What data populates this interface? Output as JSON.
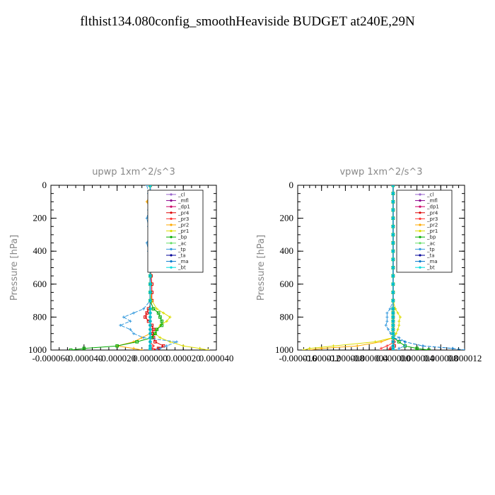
{
  "title": "flthist134.080config_smoothHeaviside  BUDGET at240E,29N",
  "legend_entries": [
    "_cl",
    "_mfl",
    "_dp1",
    "_pr4",
    "_pr3",
    "_pr2",
    "_pr1",
    "_bp",
    "_ac",
    "_tp",
    "_ta",
    "_ma",
    "_bt"
  ],
  "colors": {
    "_cl": "#9966cc",
    "_mfl": "#8b008b",
    "_dp1": "#cc0066",
    "_pr4": "#dd0000",
    "_pr3": "#ff3333",
    "_pr2": "#ffaa00",
    "_pr1": "#dddd00",
    "_bp": "#00aa00",
    "_ac": "#66dd66",
    "_tp": "#3399dd",
    "_ta": "#000099",
    "_ma": "#0077cc",
    "_bt": "#00dddd"
  },
  "chart_data": [
    {
      "type": "line",
      "title": "upwp   1xm^2/s^3",
      "ylabel": "Pressure [hPa]",
      "xlabel": "",
      "xlim": [
        -6e-05,
        4e-05
      ],
      "ylim": [
        1000,
        0
      ],
      "xticks": [
        "-0.000060",
        "-0.000040",
        "-0.000020",
        "0.000000",
        "0.000020",
        "0.000040"
      ],
      "yticks": [
        "0",
        "200",
        "400",
        "600",
        "800",
        "1000"
      ],
      "y": [
        0,
        50,
        100,
        150,
        200,
        250,
        300,
        350,
        400,
        450,
        500,
        550,
        600,
        650,
        700,
        750,
        775,
        800,
        825,
        850,
        875,
        900,
        925,
        950,
        975,
        990,
        1000
      ],
      "series": [
        {
          "name": "_cl",
          "values": [
            0,
            0,
            0,
            0,
            0,
            0,
            0,
            0,
            0,
            0,
            0,
            0,
            0,
            0,
            0,
            0,
            0,
            0,
            0,
            0,
            0,
            0,
            0,
            0,
            0,
            0,
            0
          ]
        },
        {
          "name": "_mfl",
          "values": [
            0,
            0,
            0,
            0,
            0,
            0,
            0,
            0,
            0,
            0,
            0,
            0,
            0,
            0,
            0,
            0,
            0,
            0,
            0,
            0,
            0,
            0,
            0,
            0,
            0,
            0,
            0
          ]
        },
        {
          "name": "_dp1",
          "values": [
            0,
            0,
            0,
            0,
            0,
            0,
            0,
            0,
            0,
            0,
            0,
            0,
            0,
            0,
            0,
            0,
            0,
            0,
            0,
            0,
            0,
            0,
            0,
            0,
            0,
            0,
            0
          ]
        },
        {
          "name": "_pr4",
          "values": [
            0,
            0,
            0,
            0,
            0,
            0,
            0,
            0,
            0,
            0,
            0,
            5e-07,
            1e-06,
            1e-06,
            1e-06,
            -1e-06,
            -2e-06,
            -3e-06,
            -1e-06,
            1e-06,
            2e-06,
            1e-06,
            2e-06,
            3e-06,
            8e-06,
            5e-06,
            2e-06
          ]
        },
        {
          "name": "_pr3",
          "values": [
            0,
            0,
            0,
            0,
            0,
            0,
            0,
            0,
            0,
            0,
            0,
            0,
            0,
            0,
            0,
            0,
            0,
            0,
            0,
            0,
            0,
            0,
            0,
            0,
            2e-06,
            1e-06,
            1e-06
          ]
        },
        {
          "name": "_pr2",
          "values": [
            0,
            0,
            -2e-06,
            0,
            1e-06,
            0,
            0,
            0,
            0,
            0,
            0,
            0,
            0,
            0,
            0,
            0,
            0,
            0,
            0,
            0,
            0,
            0,
            -5e-06,
            -1e-05,
            -2e-05,
            -1e-05,
            -5e-06
          ]
        },
        {
          "name": "_pr1",
          "values": [
            0,
            0,
            0,
            0,
            2e-06,
            2e-06,
            1e-06,
            0,
            0,
            0,
            0,
            0,
            0,
            0,
            1e-06,
            4e-06,
            8e-06,
            1.2e-05,
            1e-05,
            6e-06,
            4e-06,
            3e-06,
            6e-06,
            1.2e-05,
            2e-05,
            3e-05,
            3.5e-05
          ]
        },
        {
          "name": "_bp",
          "values": [
            0,
            0,
            0,
            0,
            0,
            0,
            0,
            0,
            0,
            0,
            0,
            0,
            0,
            0,
            0,
            2e-06,
            5e-06,
            6e-06,
            7e-06,
            7e-06,
            4e-06,
            3e-06,
            1e-06,
            -8e-06,
            -2e-05,
            -4e-05,
            -4.8e-05
          ]
        },
        {
          "name": "_ac",
          "values": [
            0,
            0,
            0,
            0,
            0,
            0,
            0,
            0,
            0,
            0,
            0,
            0,
            0,
            0,
            0,
            0,
            0,
            0,
            0,
            0,
            0,
            0,
            0,
            0,
            0,
            0,
            0
          ]
        },
        {
          "name": "_tp",
          "values": [
            -2e-06,
            -1e-06,
            3e-06,
            -1e-06,
            -2e-06,
            -1e-06,
            0,
            -2e-06,
            -1e-06,
            0,
            0,
            0,
            0,
            0,
            0,
            -4e-06,
            -1e-05,
            -1.6e-05,
            -1.2e-05,
            -1.8e-05,
            -1.2e-05,
            -1e-05,
            -4e-06,
            1.6e-05,
            1e-05,
            6e-06,
            4e-06
          ]
        },
        {
          "name": "_ta",
          "values": [
            0,
            0,
            0,
            0,
            0,
            0,
            0,
            0,
            0,
            0,
            0,
            0,
            0,
            0,
            0,
            0,
            0,
            0,
            0,
            0,
            0,
            0,
            0,
            0,
            0,
            0,
            0
          ]
        },
        {
          "name": "_ma",
          "values": [
            0,
            0,
            0,
            0,
            0,
            0,
            0,
            0,
            0,
            0,
            0,
            0,
            0,
            0,
            0,
            0,
            0,
            0,
            0,
            0,
            0,
            0,
            0,
            0,
            0,
            0,
            0
          ]
        },
        {
          "name": "_bt",
          "values": [
            0,
            0,
            0,
            0,
            0,
            0,
            0,
            0,
            0,
            0,
            0,
            0,
            0,
            0,
            0,
            0,
            0,
            0,
            0,
            0,
            0,
            0,
            0,
            0,
            0,
            0,
            0
          ]
        }
      ]
    },
    {
      "type": "line",
      "title": "vpwp   1xm^2/s^3",
      "ylabel": "Pressure [hPa]",
      "xlabel": "",
      "xlim": [
        -1.6e-05,
        1.2e-05
      ],
      "ylim": [
        1000,
        0
      ],
      "xticks": [
        "-0.000016",
        "-0.000012",
        "-0.000008",
        "-0.000004",
        "0.000000",
        "0.000004",
        "0.000008",
        "0.000012"
      ],
      "yticks": [
        "0",
        "200",
        "400",
        "600",
        "800",
        "1000"
      ],
      "y": [
        0,
        50,
        100,
        150,
        200,
        250,
        300,
        350,
        400,
        450,
        500,
        550,
        600,
        650,
        700,
        750,
        775,
        800,
        825,
        850,
        875,
        900,
        925,
        950,
        975,
        990,
        1000
      ],
      "series": [
        {
          "name": "_cl",
          "values": [
            0,
            0,
            0,
            0,
            0,
            0,
            0,
            0,
            0,
            0,
            0,
            0,
            0,
            0,
            0,
            0,
            0,
            0,
            0,
            0,
            0,
            0,
            0,
            0,
            0,
            0,
            0
          ]
        },
        {
          "name": "_mfl",
          "values": [
            0,
            0,
            0,
            0,
            0,
            0,
            0,
            0,
            0,
            0,
            0,
            0,
            0,
            0,
            0,
            0,
            0,
            0,
            0,
            0,
            0,
            0,
            0,
            0,
            0,
            0,
            0
          ]
        },
        {
          "name": "_dp1",
          "values": [
            0,
            0,
            0,
            0,
            0,
            0,
            0,
            0,
            0,
            0,
            0,
            0,
            0,
            0,
            0,
            0,
            0,
            0,
            0,
            0,
            0,
            0,
            0,
            0,
            0,
            0,
            0
          ]
        },
        {
          "name": "_pr4",
          "values": [
            0,
            0,
            0,
            0,
            0,
            0,
            0,
            0,
            0,
            0,
            0,
            0,
            0,
            0,
            0,
            0,
            0,
            0,
            0,
            0,
            0,
            0,
            0,
            0,
            2e-07,
            -3e-07,
            -5e-07
          ]
        },
        {
          "name": "_pr3",
          "values": [
            0,
            0,
            0,
            0,
            0,
            0,
            0,
            0,
            0,
            0,
            0,
            0,
            0,
            0,
            0,
            0,
            0,
            0,
            0,
            0,
            0,
            0,
            0,
            3e-07,
            -1e-06,
            -2e-06,
            -2e-06
          ]
        },
        {
          "name": "_pr2",
          "values": [
            0,
            0,
            0,
            0,
            0,
            0,
            0,
            0,
            0,
            0,
            0,
            0,
            0,
            0,
            0,
            0,
            0,
            0,
            0,
            0,
            0,
            0,
            0,
            -2e-06,
            -6e-06,
            -1.2e-05,
            -1.4e-05
          ]
        },
        {
          "name": "_pr1",
          "values": [
            0,
            0,
            0,
            0,
            0,
            0,
            0,
            0,
            0,
            0,
            0,
            0,
            0,
            0,
            0,
            4e-07,
            8e-07,
            1.2e-06,
            1e-06,
            1e-06,
            8e-07,
            5e-07,
            0,
            -3e-06,
            -1e-05,
            -1.4e-05,
            -1.5e-05
          ]
        },
        {
          "name": "_bp",
          "values": [
            0,
            0,
            0,
            0,
            0,
            0,
            0,
            0,
            0,
            0,
            0,
            0,
            0,
            0,
            0,
            0,
            0,
            0,
            0,
            0,
            0,
            0,
            0,
            1e-06,
            2e-06,
            4e-06,
            6e-06
          ]
        },
        {
          "name": "_ac",
          "values": [
            0,
            0,
            0,
            0,
            0,
            0,
            0,
            0,
            0,
            0,
            0,
            0,
            0,
            0,
            0,
            0,
            0,
            0,
            0,
            0,
            0,
            0,
            0,
            0,
            0,
            0,
            0
          ]
        },
        {
          "name": "_tp",
          "values": [
            0,
            0,
            0,
            0,
            0,
            0,
            0,
            0,
            0,
            0,
            0,
            0,
            0,
            0,
            0,
            -5e-07,
            -1e-06,
            -1e-06,
            -1e-06,
            -1.2e-06,
            -8e-07,
            -4e-07,
            1e-06,
            2e-06,
            2e-06,
            1e-06,
            1e-06
          ]
        },
        {
          "name": "_ta",
          "values": [
            0,
            0,
            0,
            0,
            0,
            0,
            0,
            0,
            0,
            0,
            0,
            0,
            0,
            0,
            0,
            0,
            0,
            0,
            0,
            0,
            0,
            0,
            0,
            0,
            0,
            0,
            0
          ]
        },
        {
          "name": "_ma",
          "values": [
            0,
            0,
            0,
            0,
            0,
            0,
            0,
            0,
            0,
            0,
            0,
            0,
            0,
            0,
            0,
            0,
            0,
            0,
            0,
            0,
            0,
            0,
            0,
            2e-06,
            5e-06,
            1e-05,
            1.2e-05
          ]
        },
        {
          "name": "_bt",
          "values": [
            0,
            0,
            0,
            0,
            0,
            0,
            0,
            0,
            0,
            0,
            0,
            0,
            0,
            0,
            0,
            0,
            0,
            0,
            0,
            0,
            0,
            0,
            0,
            0,
            0,
            0,
            0
          ]
        }
      ]
    }
  ]
}
